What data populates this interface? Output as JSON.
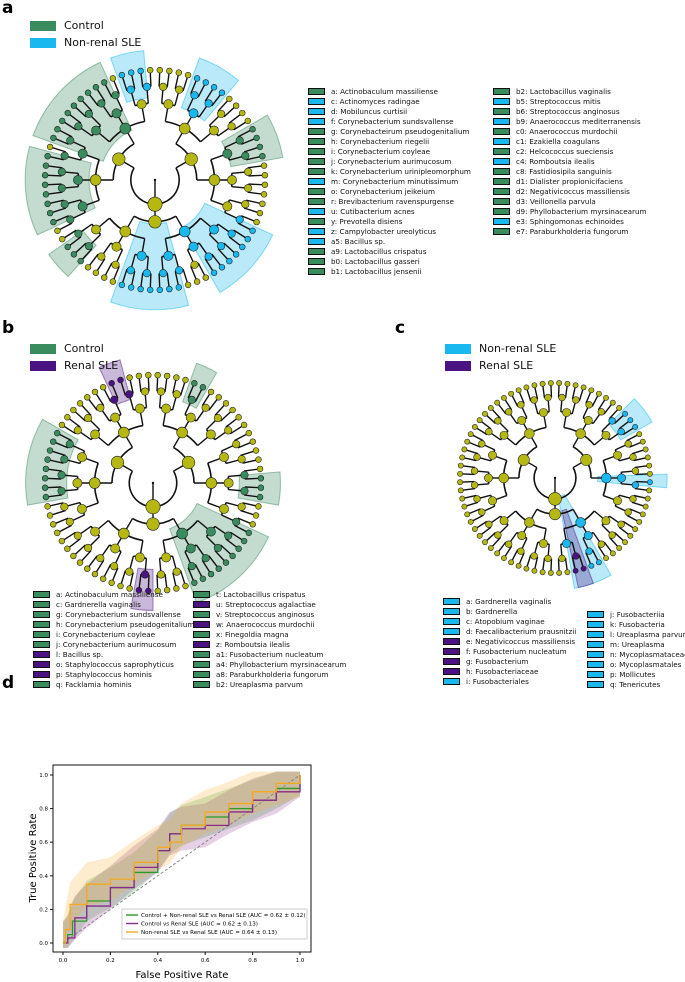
{
  "colors": {
    "control": "#3a8c5f",
    "nonrenal": "#19b9ef",
    "renal": "#4b1382",
    "node": "#b6b812",
    "green": "#2a9a2a",
    "purple": "#8a2a8a",
    "orange": "#f5a81e"
  },
  "panel_a": {
    "label": "a",
    "groups": [
      {
        "name": "Control",
        "color": "#3a8c5f"
      },
      {
        "name": "Non-renal SLE",
        "color": "#19b9ef"
      }
    ],
    "legend_col1": [
      {
        "t": "a: Actinobaculum massiliense",
        "g": "c"
      },
      {
        "t": "c: Actinomyces radingae",
        "g": "n"
      },
      {
        "t": "d: Mobiluncus curtisii",
        "g": "n"
      },
      {
        "t": "f: Corynebacterium sundsvallense",
        "g": "n"
      },
      {
        "t": "g: Corynebacteirum pseudogenitalium",
        "g": "c"
      },
      {
        "t": "h: Corynebacterium riegelii",
        "g": "c"
      },
      {
        "t": "i: Corynebacterium coyleae",
        "g": "c"
      },
      {
        "t": "j: Corynebacterium aurimucosum",
        "g": "c"
      },
      {
        "t": "k: Corynebacterium urinipleomorphum",
        "g": "c"
      },
      {
        "t": "m: Corynebacterium minutissimum",
        "g": "n"
      },
      {
        "t": "o: Corynebacterium jeikeium",
        "g": "c"
      },
      {
        "t": "r: Brevibacterium ravenspurgense",
        "g": "c"
      },
      {
        "t": "u: Cutibacterium acnes",
        "g": "n"
      },
      {
        "t": "y: Prevotella disiens",
        "g": "c"
      },
      {
        "t": "z: Campylobacter ureolyticus",
        "g": "n"
      },
      {
        "t": "a5: Bacillus sp.",
        "g": "n"
      },
      {
        "t": "a9: Lactobacillus crispatus",
        "g": "c"
      },
      {
        "t": "b0: Lactobacillus gasseri",
        "g": "c"
      },
      {
        "t": "b1: Lactobacillus jensenii",
        "g": "c"
      }
    ],
    "legend_col2": [
      {
        "t": "b2: Lactobacillus vaginalis",
        "g": "c"
      },
      {
        "t": "b5: Streptococcus mitis",
        "g": "n"
      },
      {
        "t": "b6: Streptococcus anginosus",
        "g": "c"
      },
      {
        "t": "b9: Anaerococcus mediterranensis",
        "g": "n"
      },
      {
        "t": "c0: Anaerococcus murdochii",
        "g": "c"
      },
      {
        "t": "c1: Ezakiella coagulans",
        "g": "n"
      },
      {
        "t": "c2: Helcococcus sueciensis",
        "g": "c"
      },
      {
        "t": "c4: Romboutsia ilealis",
        "g": "n"
      },
      {
        "t": "c8: Fastidiosipila sanguinis",
        "g": "c"
      },
      {
        "t": "d1: Dialister propionicifaciens",
        "g": "c"
      },
      {
        "t": "d2: Negativicoccus massiliensis",
        "g": "c"
      },
      {
        "t": "d3: Veillonella parvula",
        "g": "c"
      },
      {
        "t": "d9: Phyllobacterium myrsinacearum",
        "g": "c"
      },
      {
        "t": "e3: Sphingomonas echinoides",
        "g": "n"
      },
      {
        "t": "e7: Paraburkholderia fungorum",
        "g": "c"
      }
    ]
  },
  "panel_b": {
    "label": "b",
    "groups": [
      {
        "name": "Control",
        "color": "#3a8c5f"
      },
      {
        "name": "Renal SLE",
        "color": "#4b1382"
      }
    ],
    "legend_col1": [
      {
        "t": "a: Actinobaculum massiliense",
        "g": "c"
      },
      {
        "t": "c: Gardnerella vaginalis",
        "g": "c"
      },
      {
        "t": "g: Corynebacterium sundsvallense",
        "g": "c"
      },
      {
        "t": "h: Corynebacterium pseudogenitalium",
        "g": "c"
      },
      {
        "t": "i: Corynebacterium coyleae",
        "g": "c"
      },
      {
        "t": "j: Corynebacterium aurimucosum",
        "g": "c"
      },
      {
        "t": "l: Bacillus sp.",
        "g": "r"
      },
      {
        "t": "o: Staphylococcus saprophyticus",
        "g": "r"
      },
      {
        "t": "p: Staphylococcus hominis",
        "g": "r"
      },
      {
        "t": "q: Facklamia hominis",
        "g": "c"
      }
    ],
    "legend_col2": [
      {
        "t": "t: Lactobacillus crispatus",
        "g": "c"
      },
      {
        "t": "u: Streptococcus agalactiae",
        "g": "r"
      },
      {
        "t": "v: Streptococcus anginosus",
        "g": "c"
      },
      {
        "t": "w: Anaerococcus murdochii",
        "g": "r"
      },
      {
        "t": "x: Finegoldia magna",
        "g": "c"
      },
      {
        "t": "z: Romboutsia ilealis",
        "g": "r"
      },
      {
        "t": "a1: Fusobacterium nucleatum",
        "g": "c"
      },
      {
        "t": "a4: Phyllobacterium myrsinacearum",
        "g": "c"
      },
      {
        "t": "a8: Paraburkholderia fungorum",
        "g": "c"
      },
      {
        "t": "b2: Ureaplasma parvum",
        "g": "c"
      }
    ]
  },
  "panel_c": {
    "label": "c",
    "groups": [
      {
        "name": "Non-renal SLE",
        "color": "#19b9ef"
      },
      {
        "name": "Renal SLE",
        "color": "#4b1382"
      }
    ],
    "legend_col1": [
      {
        "t": "a: Gardnerella vaginalis",
        "g": "n"
      },
      {
        "t": "b: Gardnerella",
        "g": "n"
      },
      {
        "t": "c: Atopobium vaginae",
        "g": "n"
      },
      {
        "t": "d: Faecalibacterium prausnitzii",
        "g": "n"
      },
      {
        "t": "e: Negativicoccus massiliensis",
        "g": "r"
      },
      {
        "t": "f: Fusobacterium nucleatum",
        "g": "r"
      },
      {
        "t": "g: Fusobacterium",
        "g": "r"
      },
      {
        "t": "h: Fusobacteriaceae",
        "g": "r"
      },
      {
        "t": "i: Fusobacteriales",
        "g": "n"
      }
    ],
    "legend_col2": [
      {
        "t": "j: Fusobacteriia",
        "g": "n"
      },
      {
        "t": "k: Fusobacteria",
        "g": "n"
      },
      {
        "t": "l: Ureaplasma parvum",
        "g": "n"
      },
      {
        "t": "m: Ureaplasma",
        "g": "n"
      },
      {
        "t": "n: Mycoplasmataceae",
        "g": "n"
      },
      {
        "t": "o: Mycoplasmatales",
        "g": "n"
      },
      {
        "t": "p: Mollicutes",
        "g": "n"
      },
      {
        "t": "q: Tenericutes",
        "g": "n"
      }
    ]
  },
  "panel_d": {
    "label": "d"
  },
  "chart_data": {
    "type": "line",
    "title": "",
    "xlabel": "False Positive Rate",
    "ylabel": "True Positive Rate",
    "xlim": [
      0,
      1
    ],
    "ylim": [
      0,
      1
    ],
    "xticks": [
      "0.0",
      "0.2",
      "0.4",
      "0.6",
      "0.8",
      "1.0"
    ],
    "yticks": [
      "0.0",
      "0.2",
      "0.4",
      "0.6",
      "0.8",
      "1.0"
    ],
    "legend_position": "bottom-right",
    "series": [
      {
        "name": "Control + Non-renal SLE vs Renal SLE (AUC = 0.62 ± 0.12)",
        "color": "#2a9a2a",
        "band": 0.12,
        "x": [
          0,
          0.02,
          0.04,
          0.1,
          0.2,
          0.3,
          0.4,
          0.45,
          0.5,
          0.6,
          0.7,
          0.8,
          0.9,
          1
        ],
        "y": [
          0,
          0.05,
          0.13,
          0.25,
          0.33,
          0.42,
          0.55,
          0.65,
          0.7,
          0.75,
          0.8,
          0.85,
          0.92,
          1
        ]
      },
      {
        "name": "Control vs Renal SLE (AUC = 0.62 ± 0.13)",
        "color": "#8a2a8a",
        "band": 0.13,
        "x": [
          0,
          0.02,
          0.05,
          0.1,
          0.2,
          0.3,
          0.4,
          0.45,
          0.5,
          0.6,
          0.7,
          0.8,
          0.9,
          1
        ],
        "y": [
          0,
          0.03,
          0.15,
          0.22,
          0.33,
          0.45,
          0.55,
          0.65,
          0.68,
          0.7,
          0.78,
          0.85,
          0.9,
          1
        ]
      },
      {
        "name": "Non-renal SLE vs Renal SLE (AUC = 0.64 ± 0.13)",
        "color": "#f5a81e",
        "band": 0.13,
        "x": [
          0,
          0.01,
          0.03,
          0.1,
          0.2,
          0.3,
          0.4,
          0.45,
          0.5,
          0.6,
          0.7,
          0.8,
          0.9,
          1
        ],
        "y": [
          0,
          0.08,
          0.23,
          0.35,
          0.38,
          0.48,
          0.57,
          0.6,
          0.7,
          0.78,
          0.83,
          0.9,
          0.95,
          1
        ]
      }
    ],
    "diagonal": true
  }
}
